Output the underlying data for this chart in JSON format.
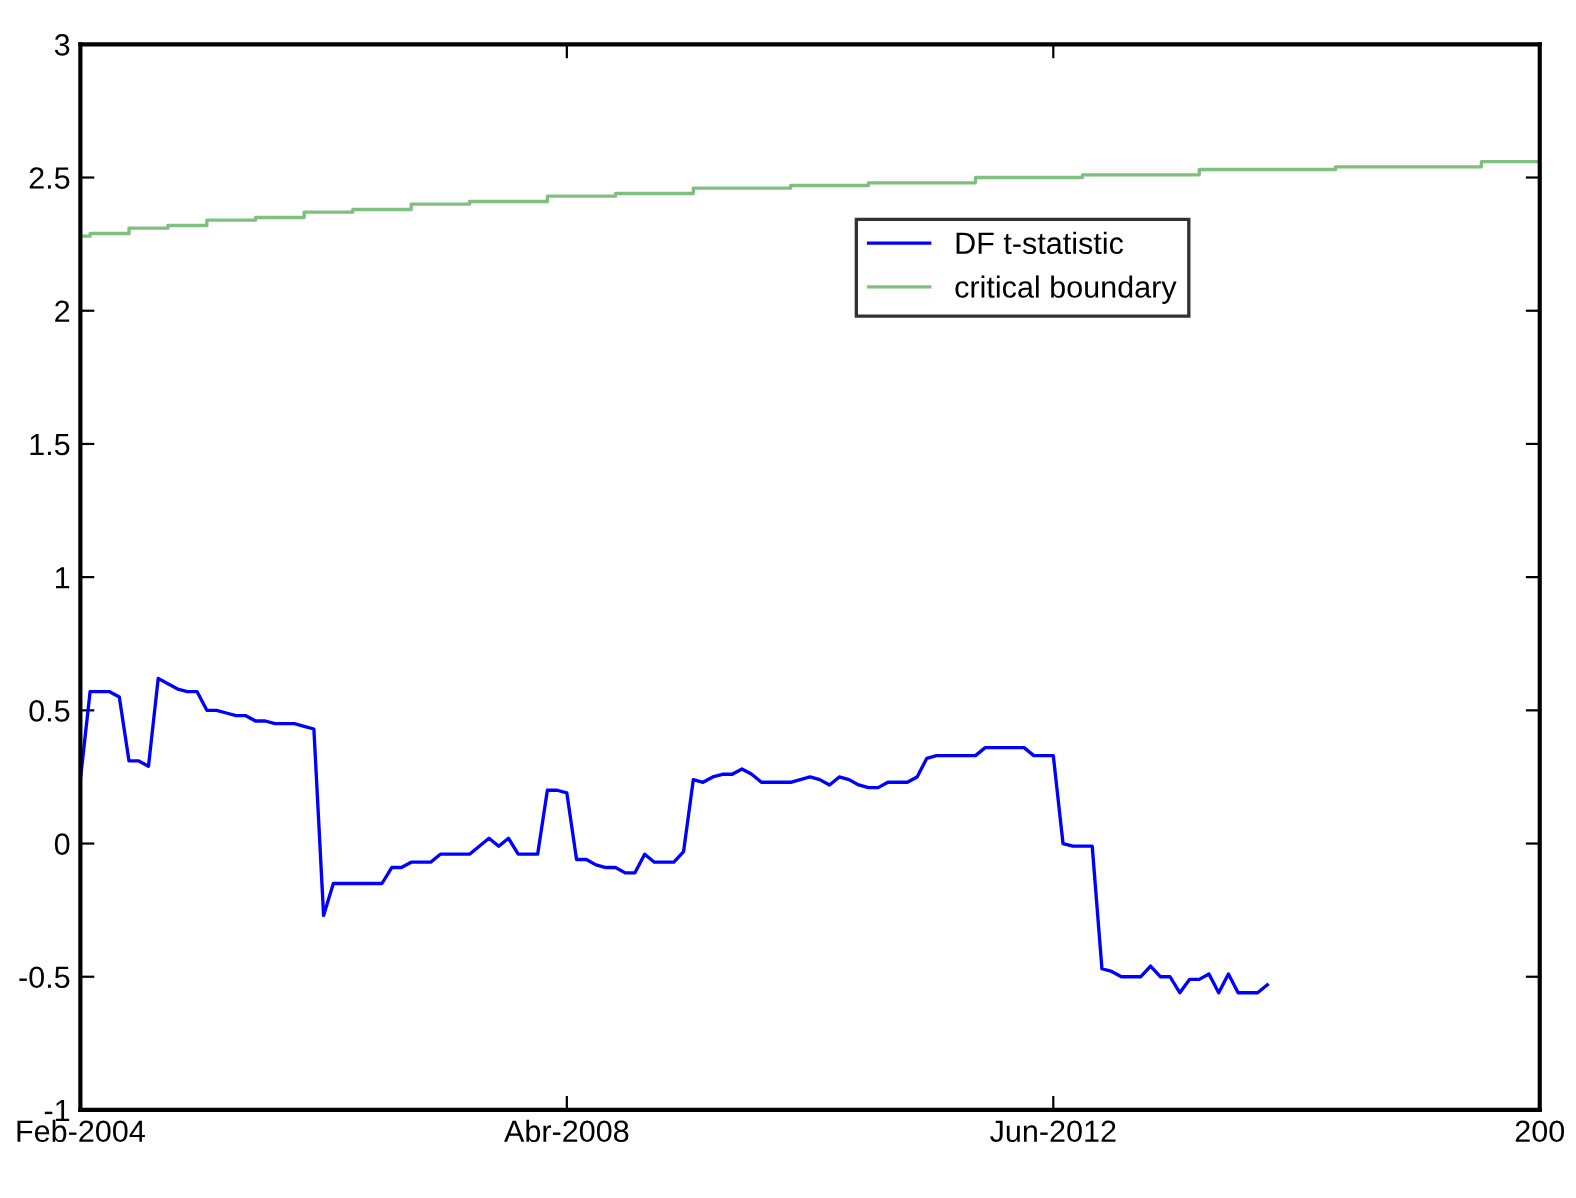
{
  "chart_data": {
    "type": "line",
    "x": [
      "2004-02",
      "2004-03",
      "2004-04",
      "2004-05",
      "2004-06",
      "2004-07",
      "2004-08",
      "2004-09",
      "2004-10",
      "2004-11",
      "2004-12",
      "2005-01",
      "2005-02",
      "2005-03",
      "2005-04",
      "2005-05",
      "2005-06",
      "2005-07",
      "2005-08",
      "2005-09",
      "2005-10",
      "2005-11",
      "2005-12",
      "2006-01",
      "2006-02",
      "2006-03",
      "2006-04",
      "2006-05",
      "2006-06",
      "2006-07",
      "2006-08",
      "2006-09",
      "2006-10",
      "2006-11",
      "2006-12",
      "2007-01",
      "2007-02",
      "2007-03",
      "2007-04",
      "2007-05",
      "2007-06",
      "2007-07",
      "2007-08",
      "2007-09",
      "2007-10",
      "2007-11",
      "2007-12",
      "2008-01",
      "2008-02",
      "2008-03",
      "2008-04",
      "2008-05",
      "2008-06",
      "2008-07",
      "2008-08",
      "2008-09",
      "2008-10",
      "2008-11",
      "2008-12",
      "2009-01",
      "2009-02",
      "2009-03",
      "2009-04",
      "2009-05",
      "2009-06",
      "2009-07",
      "2009-08",
      "2009-09",
      "2009-10",
      "2009-11",
      "2009-12",
      "2010-01",
      "2010-02",
      "2010-03",
      "2010-04",
      "2010-05",
      "2010-06",
      "2010-07",
      "2010-08",
      "2010-09",
      "2010-10",
      "2010-11",
      "2010-12",
      "2011-01",
      "2011-02",
      "2011-03",
      "2011-04",
      "2011-05",
      "2011-06",
      "2011-07",
      "2011-08",
      "2011-09",
      "2011-10",
      "2011-11",
      "2011-12",
      "2012-01",
      "2012-02",
      "2012-03",
      "2012-04",
      "2012-05",
      "2012-06",
      "2012-07",
      "2012-08",
      "2012-09",
      "2012-10",
      "2012-11",
      "2012-12",
      "2013-01",
      "2013-02",
      "2013-03",
      "2013-04",
      "2013-05",
      "2013-06",
      "2013-07",
      "2013-08",
      "2013-09",
      "2013-10",
      "2013-11",
      "2013-12",
      "2014-01",
      "2014-02",
      "2014-03",
      "2014-04"
    ],
    "series": [
      {
        "name": "DF t-statistic",
        "color": "#0000ff",
        "values": [
          0.24,
          0.57,
          0.57,
          0.57,
          0.55,
          0.31,
          0.31,
          0.29,
          0.62,
          0.6,
          0.58,
          0.57,
          0.57,
          0.5,
          0.5,
          0.49,
          0.48,
          0.48,
          0.46,
          0.46,
          0.45,
          0.45,
          0.45,
          0.44,
          0.43,
          -0.27,
          -0.15,
          -0.15,
          -0.15,
          -0.15,
          -0.15,
          -0.15,
          -0.09,
          -0.09,
          -0.07,
          -0.07,
          -0.07,
          -0.04,
          -0.04,
          -0.04,
          -0.04,
          -0.01,
          0.02,
          -0.01,
          0.02,
          -0.04,
          -0.04,
          -0.04,
          0.2,
          0.2,
          0.19,
          -0.06,
          -0.06,
          -0.08,
          -0.09,
          -0.09,
          -0.11,
          -0.11,
          -0.04,
          -0.07,
          -0.07,
          -0.07,
          -0.03,
          0.24,
          0.23,
          0.25,
          0.26,
          0.26,
          0.28,
          0.26,
          0.23,
          0.23,
          0.23,
          0.23,
          0.24,
          0.25,
          0.24,
          0.22,
          0.25,
          0.24,
          0.22,
          0.21,
          0.21,
          0.23,
          0.23,
          0.23,
          0.25,
          0.32,
          0.33,
          0.33,
          0.33,
          0.33,
          0.33,
          0.36,
          0.36,
          0.36,
          0.36,
          0.36,
          0.33,
          0.33,
          0.33,
          0.0,
          -0.01,
          -0.01,
          -0.01,
          -0.47,
          -0.48,
          -0.5,
          -0.5,
          -0.5,
          -0.46,
          -0.5,
          -0.5,
          -0.56,
          -0.51,
          -0.51,
          -0.49,
          -0.56,
          -0.49,
          -0.56,
          -0.56,
          -0.56,
          -0.53
        ]
      },
      {
        "name": "critical boundary",
        "color": "#7fbf7f",
        "type": "step",
        "x": [
          "2004-02",
          "2004-03",
          "2004-07",
          "2004-11",
          "2005-03",
          "2005-08",
          "2006-01",
          "2006-06",
          "2006-12",
          "2007-06",
          "2008-02",
          "2008-09",
          "2009-05",
          "2010-03",
          "2010-11",
          "2011-10",
          "2012-09",
          "2013-09",
          "2014-11",
          "2016-02",
          "2016-08"
        ],
        "values": [
          2.28,
          2.29,
          2.31,
          2.32,
          2.34,
          2.35,
          2.37,
          2.38,
          2.4,
          2.41,
          2.43,
          2.44,
          2.46,
          2.47,
          2.48,
          2.5,
          2.51,
          2.53,
          2.54,
          2.56,
          2.56
        ]
      }
    ],
    "xlim": [
      "2004-02",
      "2016-08"
    ],
    "xticks": [
      {
        "value": "2004-02",
        "label": "Feb-2004"
      },
      {
        "value": "2008-04",
        "label": "Abr-2008"
      },
      {
        "value": "2012-06",
        "label": "Jun-2012"
      },
      {
        "value": "2016-08",
        "label": "200"
      }
    ],
    "ylim": [
      -1,
      3
    ],
    "yticks": [
      -1,
      -0.5,
      0,
      0.5,
      1,
      1.5,
      2,
      2.5,
      3
    ],
    "legend": "top right",
    "grid": false
  }
}
